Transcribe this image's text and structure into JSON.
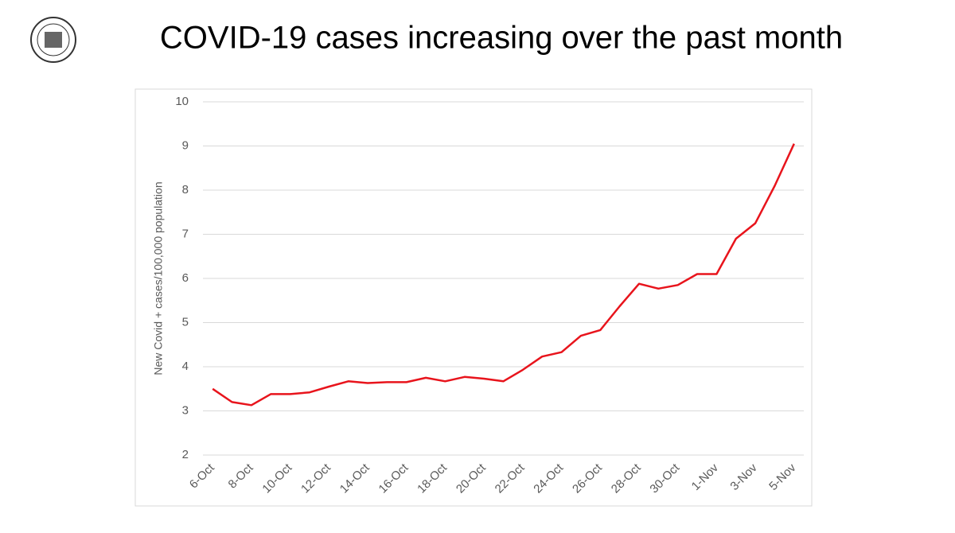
{
  "chart_data": {
    "type": "line",
    "title": "COVID-19 cases increasing over the past month",
    "y_label": "New Covid + cases/100,000 population",
    "categories": [
      "6-Oct",
      null,
      "8-Oct",
      null,
      "10-Oct",
      null,
      "12-Oct",
      null,
      "14-Oct",
      null,
      "16-Oct",
      null,
      "18-Oct",
      null,
      "20-Oct",
      null,
      "22-Oct",
      null,
      "24-Oct",
      null,
      "26-Oct",
      null,
      "28-Oct",
      null,
      "30-Oct",
      null,
      "1-Nov",
      null,
      "3-Nov",
      null,
      "5-Nov"
    ],
    "values": [
      3.5,
      3.2,
      3.13,
      3.38,
      3.38,
      3.42,
      3.55,
      3.67,
      3.63,
      3.65,
      3.65,
      3.75,
      3.67,
      3.77,
      3.73,
      3.67,
      3.93,
      4.23,
      4.33,
      4.7,
      4.83,
      5.37,
      5.88,
      5.77,
      5.85,
      6.1,
      6.1,
      6.9,
      7.25,
      8.1,
      9.05
    ],
    "color": "#e8141c",
    "ylim": [
      2,
      10
    ],
    "yticks": [
      2,
      3,
      4,
      5,
      6,
      7,
      8,
      9,
      10
    ],
    "grid": true
  }
}
